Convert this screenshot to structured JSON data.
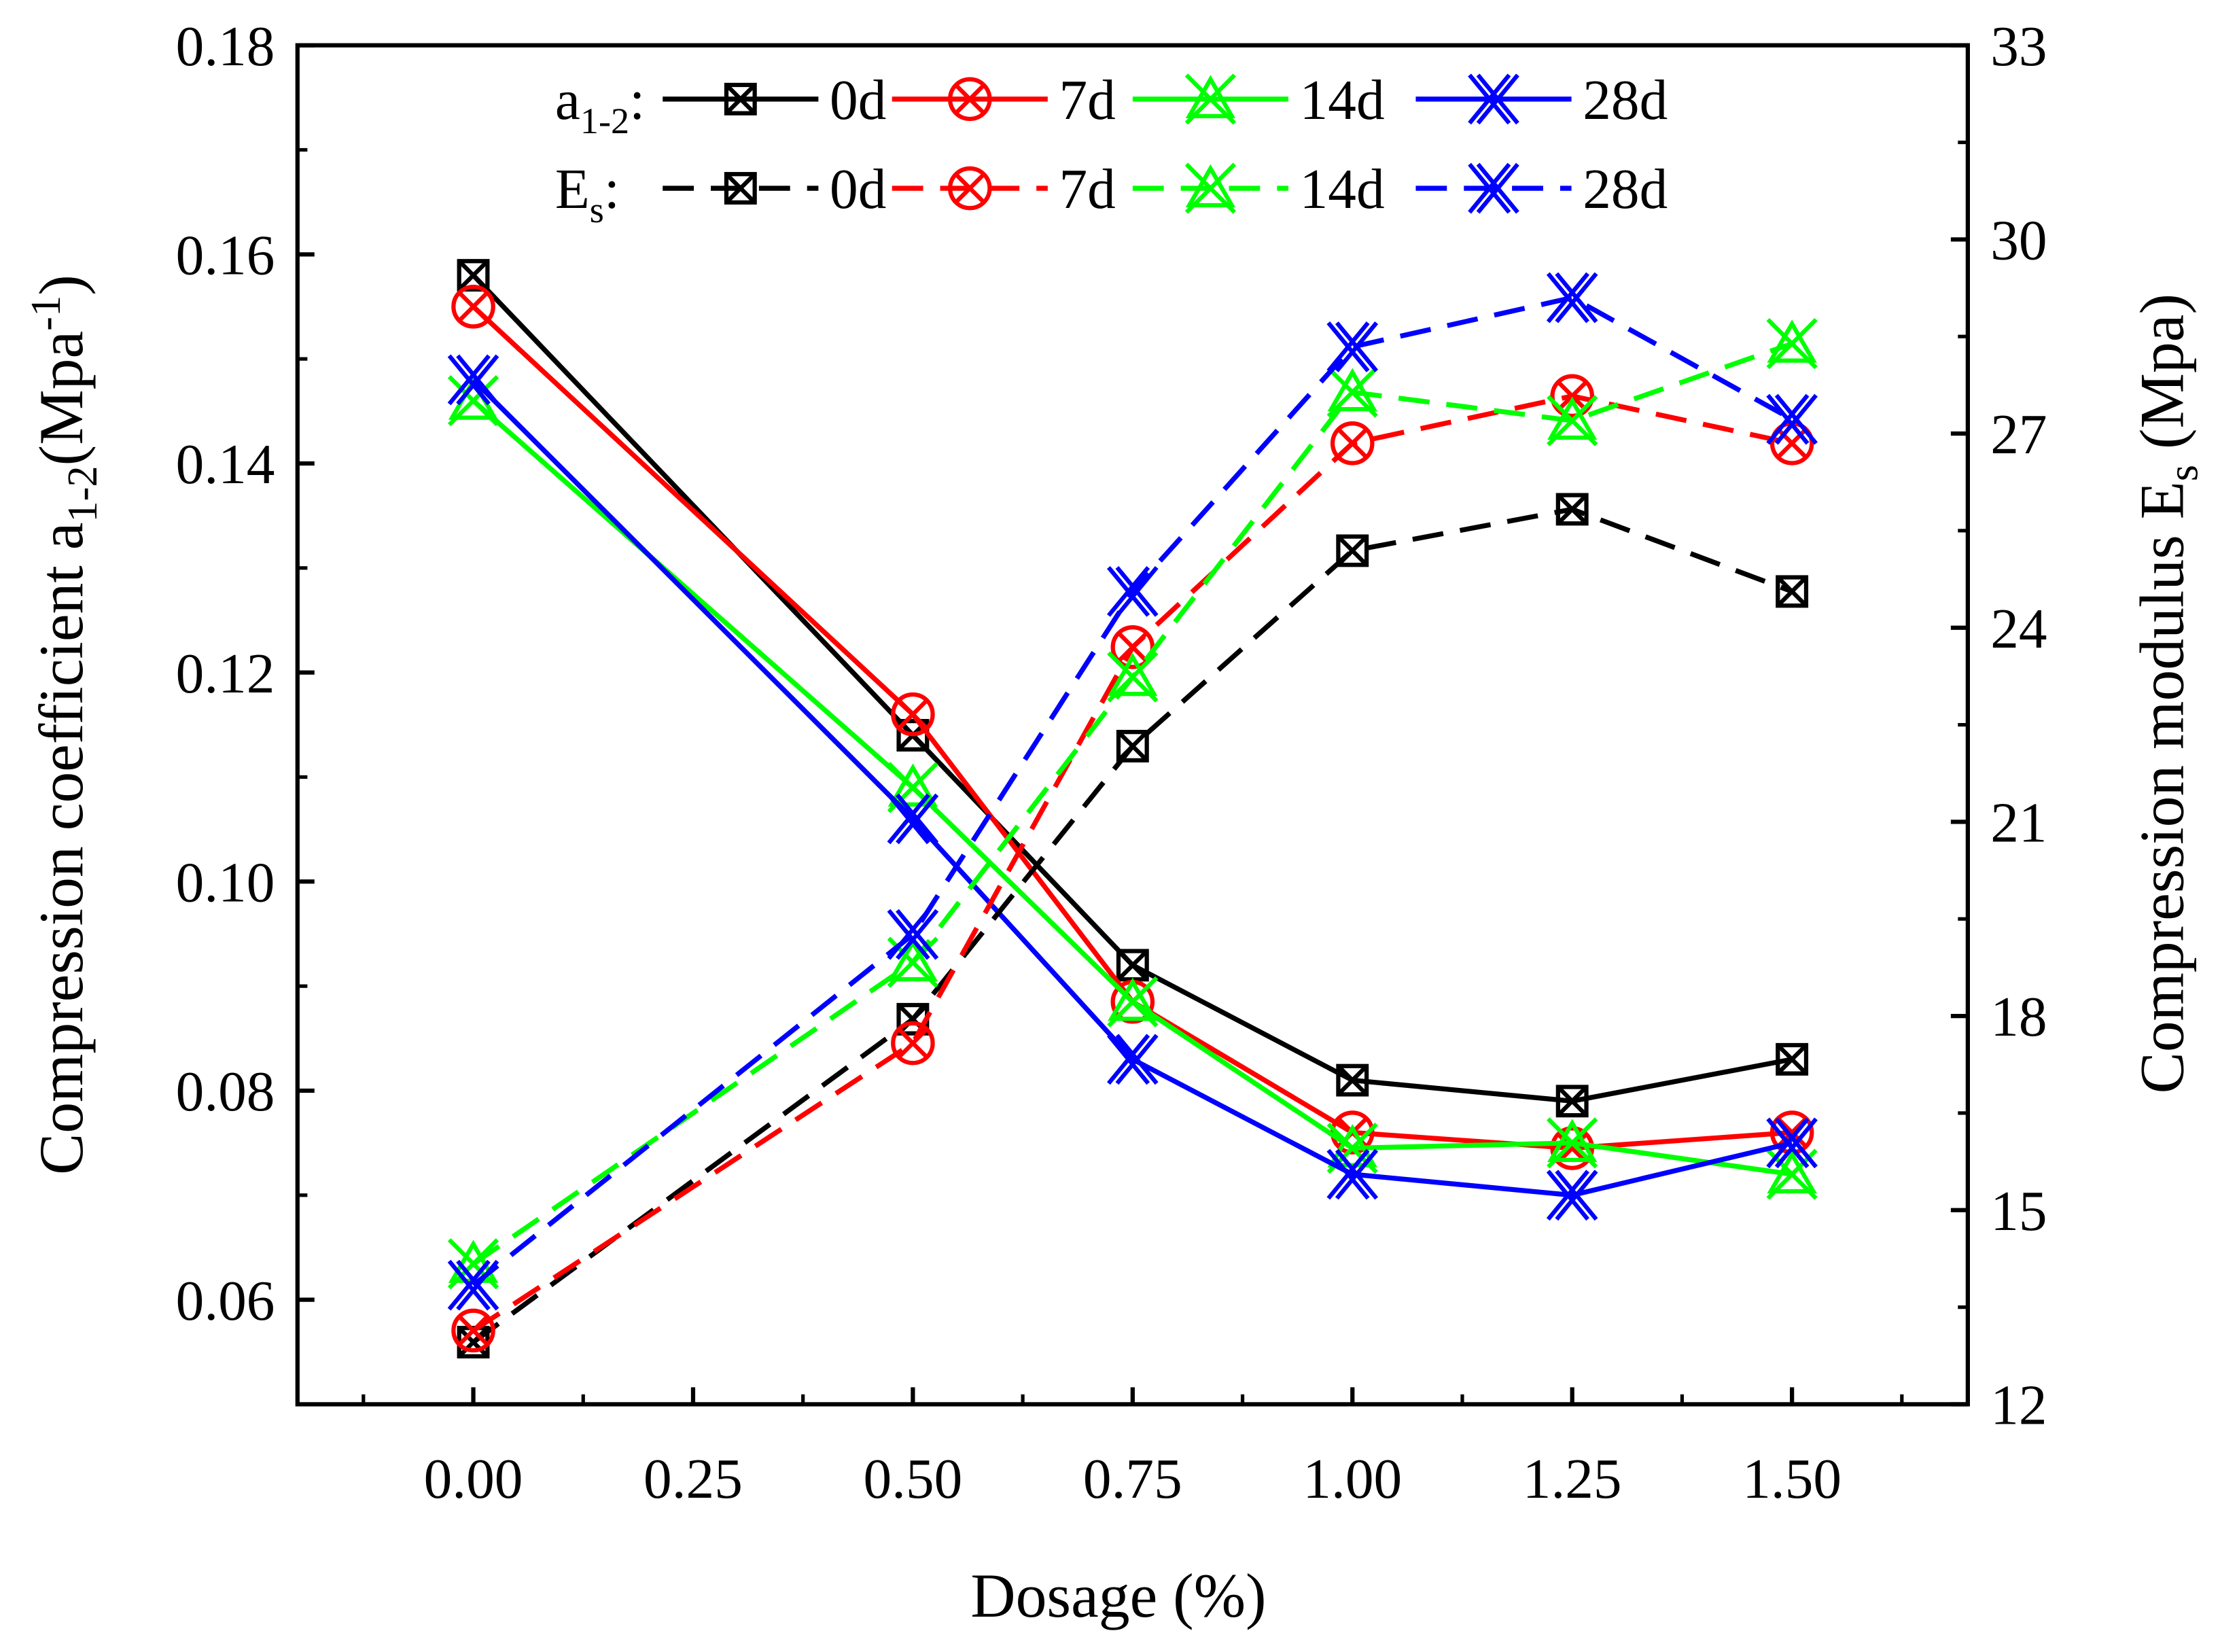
{
  "chart_data": {
    "type": "line",
    "xlabel": "Dosage (%)",
    "ylabel_left": {
      "main": "Compression coefficient a",
      "sub": "1-2",
      "unit_pre": "(Mpa",
      "unit_sup": "-1",
      "unit_post": ")"
    },
    "ylabel_right": {
      "main": "Compression modulus E",
      "sub": "s",
      "unit": " (Mpa)"
    },
    "xlim": [
      -0.2,
      1.7
    ],
    "ylim_left": [
      0.05,
      0.18
    ],
    "ylim_right": [
      12,
      33
    ],
    "x_ticks": [
      "0.00",
      "0.25",
      "0.50",
      "0.75",
      "1.00",
      "1.25",
      "1.50"
    ],
    "y_left_ticks": [
      "0.06",
      "0.08",
      "0.10",
      "0.12",
      "0.14",
      "0.16",
      "0.18"
    ],
    "y_right_ticks": [
      "12",
      "15",
      "18",
      "21",
      "24",
      "27",
      "30",
      "33"
    ],
    "x": [
      0,
      0.5,
      0.75,
      1.0,
      1.25,
      1.5
    ],
    "legend": {
      "position": "top-center",
      "row1_label": "a",
      "row1_sub": "1-2",
      "row2_label": "E",
      "row2_sub": "s",
      "sep": ":"
    },
    "series": [
      {
        "name": "0d",
        "group": "a1-2",
        "axis": "left",
        "style": "solid",
        "marker": "square-x",
        "color": "#000000",
        "values": [
          0.158,
          0.114,
          0.092,
          0.081,
          0.079,
          0.083
        ]
      },
      {
        "name": "7d",
        "group": "a1-2",
        "axis": "left",
        "style": "solid",
        "marker": "circle-x",
        "color": "#ff0000",
        "values": [
          0.155,
          0.116,
          0.0885,
          0.076,
          0.0745,
          0.076
        ]
      },
      {
        "name": "14d",
        "group": "a1-2",
        "axis": "left",
        "style": "solid",
        "marker": "triangle-x",
        "color": "#00ff00",
        "values": [
          0.146,
          0.109,
          0.0885,
          0.0745,
          0.075,
          0.072
        ]
      },
      {
        "name": "28d",
        "group": "a1-2",
        "axis": "left",
        "style": "solid",
        "marker": "double-x",
        "color": "#0000ff",
        "values": [
          0.148,
          0.106,
          0.083,
          0.072,
          0.07,
          0.075
        ]
      },
      {
        "name": "0d",
        "group": "Es",
        "axis": "right",
        "style": "dashed",
        "marker": "square-x",
        "color": "#000000",
        "values": [
          12.96,
          17.95,
          22.17,
          25.19,
          25.83,
          24.56
        ]
      },
      {
        "name": "7d",
        "group": "Es",
        "axis": "right",
        "style": "dashed",
        "marker": "circle-x",
        "color": "#ff0000",
        "values": [
          13.14,
          17.58,
          23.7,
          26.85,
          27.58,
          26.85
        ]
      },
      {
        "name": "14d",
        "group": "Es",
        "axis": "right",
        "style": "dashed",
        "marker": "triangle-x",
        "color": "#00ff00",
        "values": [
          14.17,
          18.83,
          23.24,
          27.64,
          27.2,
          28.39
        ]
      },
      {
        "name": "28d",
        "group": "Es",
        "axis": "right",
        "style": "dashed",
        "marker": "double-x",
        "color": "#0000ff",
        "values": [
          13.84,
          19.26,
          24.56,
          28.34,
          29.1,
          27.22
        ]
      }
    ]
  }
}
